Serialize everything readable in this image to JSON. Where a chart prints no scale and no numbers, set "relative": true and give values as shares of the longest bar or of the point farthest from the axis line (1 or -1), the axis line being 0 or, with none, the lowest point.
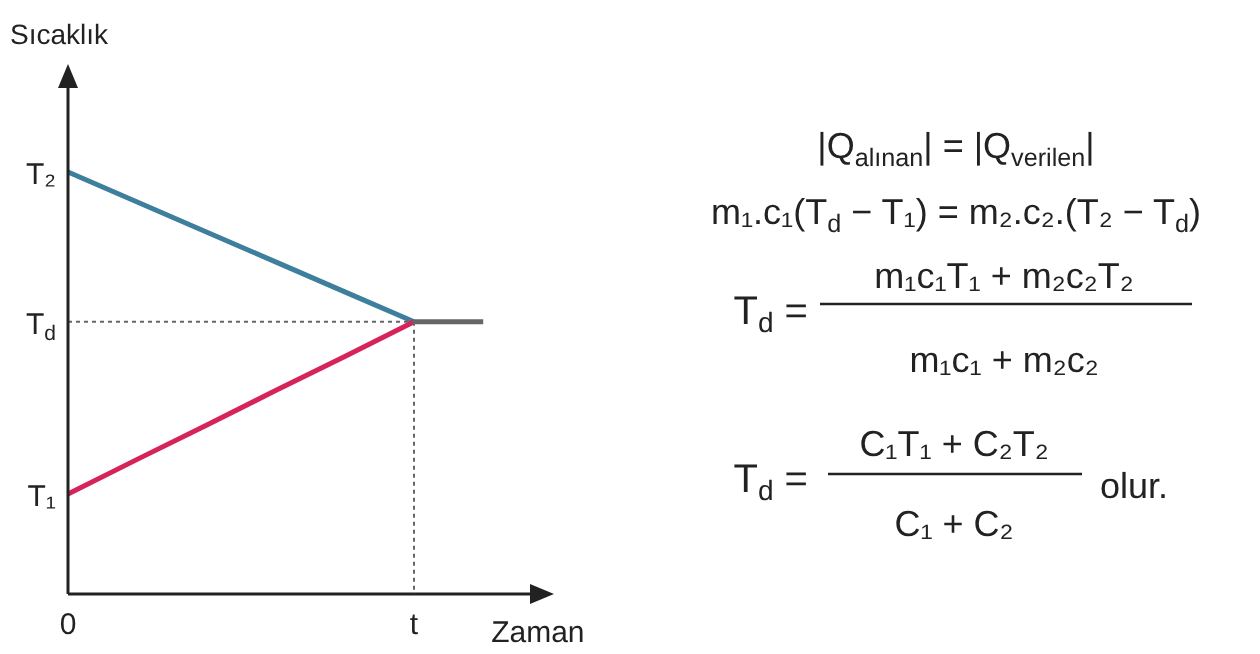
{
  "chart_data": {
    "type": "line",
    "relative": true,
    "xlabel": "Zaman",
    "ylabel": "Sıcaklık",
    "categories": [
      "0",
      null,
      null,
      null,
      null,
      "t",
      null
    ],
    "series": [
      {
        "color": "#3d7f9c",
        "values": [
          1,
          0.929,
          0.858,
          0.787,
          0.716,
          0.645,
          null
        ]
      },
      {
        "color": "#d6245a",
        "values": [
          0.237,
          0.319,
          0.4,
          0.482,
          0.563,
          0.645,
          null
        ]
      },
      {
        "color": "#666666",
        "values": [
          null,
          null,
          null,
          null,
          null,
          0.645,
          0.645
        ]
      },
      {
        "color": "#666666",
        "values": [
          0.645,
          0.645,
          0.645,
          0.645,
          0.645,
          0.645,
          null
        ],
        "line_style": "dotted"
      }
    ],
    "annotations": [
      "T₂",
      "T$_{d}$",
      "T₁",
      "|Q$_{alınan}$| = |Q$_{verilen}$|",
      "m₁.c₁(T$_{d}$ − T₁) = m₂.c₂.(T₂ − T$_{d}$)",
      "T$_{d}$ =",
      "m₁c₁T₁ + m₂c₂T₂",
      "m₁c₁ + m₂c₂",
      "T$_{d}$ =",
      "C₁T₁ + C₂T₂",
      "C₁ + C₂",
      "olur."
    ]
  }
}
